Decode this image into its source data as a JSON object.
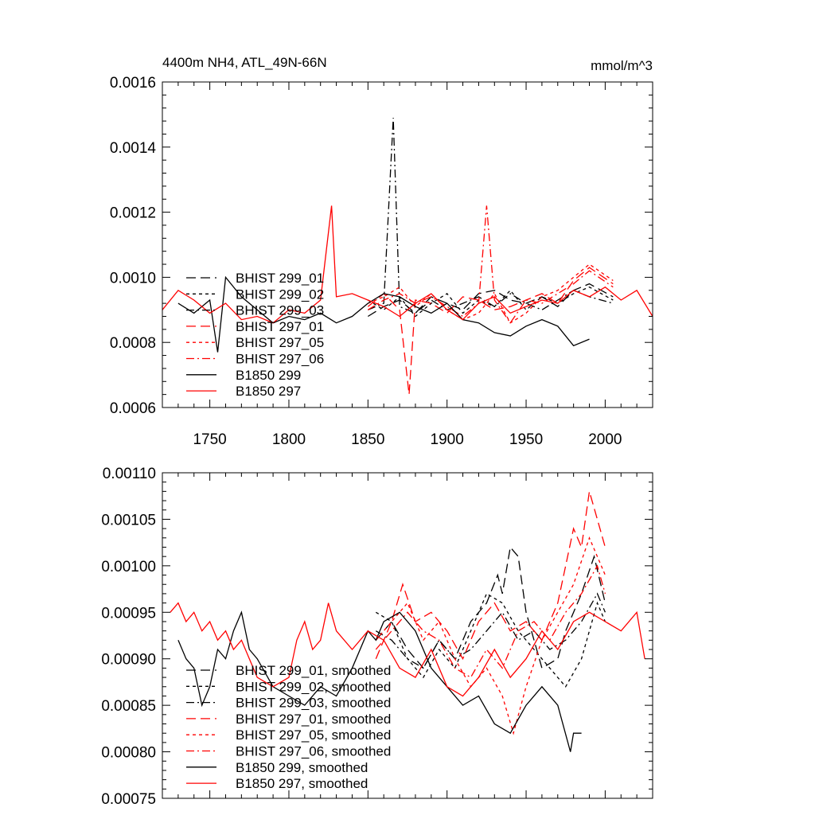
{
  "chart_data": [
    {
      "type": "line",
      "title": "4400m NH4, ATL_49N-66N",
      "units": "mmol/m^3",
      "xlim": [
        1720,
        2030
      ],
      "ylim": [
        0.0006,
        0.0016
      ],
      "x_ticks": [
        1750,
        1800,
        1850,
        1900,
        1950,
        2000
      ],
      "x_tick_labels": [
        "1750",
        "1800",
        "1850",
        "1900",
        "1950",
        "2000"
      ],
      "y_ticks": [
        0.0006,
        0.0008,
        0.001,
        0.0012,
        0.0014,
        0.0016
      ],
      "y_tick_labels": [
        "0.0006",
        "0.0008",
        "0.0010",
        "0.0012",
        "0.0014",
        "0.0016"
      ],
      "legend_position": "left-center",
      "series": [
        {
          "name": "BHIST 299_01",
          "color": "#000000",
          "dash": "long-dash",
          "x": [
            1850,
            1860,
            1870,
            1880,
            1890,
            1900,
            1910,
            1920,
            1930,
            1940,
            1950,
            1960,
            1970,
            1980,
            1990,
            2005
          ],
          "y": [
            0.00088,
            0.00091,
            0.00093,
            0.00089,
            0.00094,
            0.00092,
            0.0009,
            0.00095,
            0.00096,
            0.00093,
            0.00092,
            0.00094,
            0.00091,
            0.00096,
            0.00098,
            0.00094
          ]
        },
        {
          "name": "BHIST 299_02",
          "color": "#000000",
          "dash": "short-dash",
          "x": [
            1850,
            1860,
            1870,
            1880,
            1890,
            1900,
            1910,
            1920,
            1930,
            1940,
            1950,
            1960,
            1970,
            1980,
            1990,
            2005
          ],
          "y": [
            0.00093,
            0.0009,
            0.00094,
            0.00088,
            0.00092,
            0.00095,
            0.00089,
            0.00093,
            0.00091,
            0.00096,
            0.0009,
            0.00094,
            0.00092,
            0.00095,
            0.00097,
            0.00093
          ]
        },
        {
          "name": "BHIST 299_03",
          "color": "#000000",
          "dash": "dash-dot",
          "x": [
            1850,
            1860,
            1866,
            1870,
            1880,
            1890,
            1900,
            1910,
            1920,
            1930,
            1940,
            1950,
            1960,
            1970,
            1980,
            1990,
            2005
          ],
          "y": [
            0.0009,
            0.00092,
            0.00149,
            0.00091,
            0.00089,
            0.00093,
            0.0009,
            0.00092,
            0.00094,
            0.00091,
            0.00095,
            0.00092,
            0.0009,
            0.00093,
            0.00096,
            0.00094,
            0.00092
          ]
        },
        {
          "name": "BHIST 297_01",
          "color": "#ff0000",
          "dash": "long-dash",
          "x": [
            1850,
            1860,
            1870,
            1876,
            1880,
            1890,
            1900,
            1910,
            1920,
            1930,
            1940,
            1950,
            1960,
            1970,
            1980,
            1990,
            2005
          ],
          "y": [
            0.00091,
            0.00095,
            0.0009,
            0.00064,
            0.00093,
            0.00092,
            0.00089,
            0.00094,
            0.00093,
            0.0009,
            0.00091,
            0.00093,
            0.00095,
            0.00092,
            0.00099,
            0.00103,
            0.00098
          ]
        },
        {
          "name": "BHIST 297_05",
          "color": "#ff0000",
          "dash": "short-dash",
          "x": [
            1850,
            1860,
            1870,
            1880,
            1890,
            1900,
            1910,
            1920,
            1930,
            1940,
            1950,
            1960,
            1970,
            1980,
            1990,
            2005
          ],
          "y": [
            0.00092,
            0.00094,
            0.00097,
            0.00091,
            0.00095,
            0.0009,
            0.00087,
            0.00089,
            0.00095,
            0.00086,
            0.00089,
            0.00094,
            0.00096,
            0.001,
            0.00104,
            0.00099
          ]
        },
        {
          "name": "BHIST 297_06",
          "color": "#ff0000",
          "dash": "dash-dot",
          "x": [
            1850,
            1860,
            1870,
            1880,
            1890,
            1900,
            1910,
            1920,
            1925,
            1930,
            1940,
            1950,
            1960,
            1970,
            1980,
            1990,
            2005
          ],
          "y": [
            0.0009,
            0.00093,
            0.00095,
            0.00092,
            0.00094,
            0.00091,
            0.00088,
            0.00092,
            0.00122,
            0.00093,
            0.00086,
            0.00093,
            0.00092,
            0.00095,
            0.00098,
            0.00102,
            0.00097
          ]
        },
        {
          "name": "B1850 299",
          "color": "#000000",
          "dash": "solid",
          "x": [
            1730,
            1740,
            1750,
            1755,
            1760,
            1770,
            1780,
            1790,
            1800,
            1810,
            1820,
            1830,
            1840,
            1850,
            1860,
            1870,
            1880,
            1890,
            1900,
            1910,
            1920,
            1930,
            1940,
            1950,
            1960,
            1970,
            1980,
            1990
          ],
          "y": [
            0.00092,
            0.00089,
            0.00093,
            0.00077,
            0.001,
            0.00094,
            0.0009,
            0.00086,
            0.00088,
            0.00087,
            0.00089,
            0.00086,
            0.00088,
            0.00092,
            0.00095,
            0.00094,
            0.00091,
            0.00089,
            0.00092,
            0.00087,
            0.00086,
            0.00083,
            0.00082,
            0.00085,
            0.00087,
            0.00085,
            0.00079,
            0.00081
          ]
        },
        {
          "name": "B1850 297",
          "color": "#ff0000",
          "dash": "solid",
          "x": [
            1720,
            1730,
            1740,
            1750,
            1760,
            1770,
            1780,
            1790,
            1800,
            1810,
            1820,
            1827,
            1830,
            1840,
            1850,
            1860,
            1870,
            1880,
            1890,
            1900,
            1910,
            1920,
            1930,
            1940,
            1950,
            1960,
            1970,
            1980,
            1990,
            2000,
            2010,
            2020,
            2030
          ],
          "y": [
            0.0009,
            0.00096,
            0.00093,
            0.00089,
            0.00092,
            0.00087,
            0.00088,
            0.00086,
            0.0009,
            0.00089,
            0.00093,
            0.00122,
            0.00094,
            0.00095,
            0.00093,
            0.00091,
            0.00088,
            0.00092,
            0.00095,
            0.0009,
            0.00087,
            0.00092,
            0.00094,
            0.00089,
            0.00091,
            0.00093,
            0.00092,
            0.00096,
            0.00094,
            0.00097,
            0.00093,
            0.00096,
            0.00088
          ]
        }
      ]
    },
    {
      "type": "line",
      "xlim": [
        1720,
        2030
      ],
      "ylim": [
        0.00075,
        0.0011
      ],
      "x_ticks": [
        1750,
        1800,
        1850,
        1900,
        1950,
        2000
      ],
      "y_ticks": [
        0.00075,
        0.0008,
        0.00085,
        0.0009,
        0.00095,
        0.001,
        0.00105,
        0.0011
      ],
      "y_tick_labels": [
        "0.00075",
        "0.00080",
        "0.00085",
        "0.00090",
        "0.00095",
        "0.00100",
        "0.00105",
        "0.00110"
      ],
      "legend_position": "bottom-left",
      "series": [
        {
          "name": "BHIST 299_01, smoothed",
          "color": "#000000",
          "dash": "long-dash",
          "x": [
            1855,
            1865,
            1875,
            1885,
            1895,
            1905,
            1915,
            1925,
            1932,
            1935,
            1940,
            1945,
            1950,
            1955,
            1960,
            1970,
            1975,
            1985,
            1993,
            2000
          ],
          "y": [
            0.00092,
            0.00094,
            0.00091,
            0.00089,
            0.00092,
            0.0009,
            0.00094,
            0.00096,
            0.00099,
            0.00097,
            0.00102,
            0.00101,
            0.00095,
            0.00092,
            0.00089,
            0.0009,
            0.00093,
            0.00097,
            0.00101,
            0.00096
          ]
        },
        {
          "name": "BHIST 299_02, smoothed",
          "color": "#000000",
          "dash": "short-dash",
          "x": [
            1855,
            1865,
            1875,
            1885,
            1895,
            1905,
            1915,
            1925,
            1935,
            1945,
            1955,
            1965,
            1975,
            1985,
            1995,
            2000
          ],
          "y": [
            0.00095,
            0.00094,
            0.0009,
            0.00088,
            0.00091,
            0.00089,
            0.00093,
            0.00097,
            0.00096,
            0.00093,
            0.00091,
            0.00089,
            0.00087,
            0.0009,
            0.00096,
            0.00094
          ]
        },
        {
          "name": "BHIST 299_03, smoothed",
          "color": "#000000",
          "dash": "dash-dot",
          "x": [
            1855,
            1865,
            1875,
            1885,
            1895,
            1905,
            1915,
            1925,
            1935,
            1945,
            1955,
            1965,
            1975,
            1985,
            1995,
            2000
          ],
          "y": [
            0.00093,
            0.00092,
            0.0009,
            0.00089,
            0.00092,
            0.0009,
            0.00091,
            0.00093,
            0.00095,
            0.00092,
            0.00093,
            0.00091,
            0.00092,
            0.00094,
            0.00097,
            0.00095
          ]
        },
        {
          "name": "BHIST 297_01, smoothed",
          "color": "#ff0000",
          "dash": "long-dash",
          "x": [
            1855,
            1865,
            1872,
            1880,
            1890,
            1900,
            1910,
            1920,
            1930,
            1940,
            1950,
            1960,
            1970,
            1975,
            1980,
            1985,
            1990,
            1995,
            2000
          ],
          "y": [
            0.0009,
            0.00094,
            0.00098,
            0.00094,
            0.00095,
            0.00093,
            0.0009,
            0.00094,
            0.00096,
            0.00093,
            0.00094,
            0.00092,
            0.00096,
            0.001,
            0.00104,
            0.00102,
            0.00108,
            0.00105,
            0.00102
          ]
        },
        {
          "name": "BHIST 297_05, smoothed",
          "color": "#ff0000",
          "dash": "short-dash",
          "x": [
            1855,
            1865,
            1875,
            1885,
            1895,
            1905,
            1915,
            1925,
            1935,
            1942,
            1950,
            1960,
            1970,
            1980,
            1990,
            1995,
            2000
          ],
          "y": [
            0.00092,
            0.00094,
            0.00096,
            0.00092,
            0.00094,
            0.0009,
            0.00087,
            0.00089,
            0.00086,
            0.00082,
            0.00087,
            0.00092,
            0.00095,
            0.00098,
            0.00103,
            0.00101,
            0.00099
          ]
        },
        {
          "name": "BHIST 297_06, smoothed",
          "color": "#ff0000",
          "dash": "dash-dot",
          "x": [
            1855,
            1865,
            1875,
            1885,
            1895,
            1905,
            1915,
            1925,
            1935,
            1945,
            1955,
            1965,
            1975,
            1985,
            1995,
            2000
          ],
          "y": [
            0.00091,
            0.00093,
            0.00095,
            0.00093,
            0.00092,
            0.00089,
            0.00088,
            0.00091,
            0.00089,
            0.00093,
            0.00094,
            0.00092,
            0.00095,
            0.00097,
            0.001,
            0.00097
          ]
        },
        {
          "name": "B1850 299, smoothed",
          "color": "#000000",
          "dash": "solid",
          "x": [
            1730,
            1735,
            1740,
            1745,
            1750,
            1755,
            1760,
            1765,
            1770,
            1775,
            1780,
            1790,
            1800,
            1810,
            1820,
            1830,
            1840,
            1850,
            1855,
            1860,
            1870,
            1880,
            1890,
            1900,
            1910,
            1920,
            1930,
            1940,
            1950,
            1960,
            1970,
            1978,
            1980,
            1985
          ],
          "y": [
            0.00092,
            0.0009,
            0.00089,
            0.00085,
            0.00087,
            0.00091,
            0.0009,
            0.00093,
            0.00095,
            0.00091,
            0.0009,
            0.00087,
            0.00086,
            0.00085,
            0.00087,
            0.00086,
            0.00089,
            0.00093,
            0.00092,
            0.00094,
            0.00095,
            0.00093,
            0.00089,
            0.00087,
            0.00085,
            0.00086,
            0.00083,
            0.00082,
            0.00085,
            0.00087,
            0.00085,
            0.0008,
            0.00082,
            0.00082
          ]
        },
        {
          "name": "B1850 297, smoothed",
          "color": "#ff0000",
          "dash": "solid",
          "x": [
            1725,
            1730,
            1735,
            1740,
            1745,
            1750,
            1755,
            1760,
            1765,
            1770,
            1775,
            1780,
            1790,
            1800,
            1805,
            1810,
            1815,
            1820,
            1825,
            1830,
            1840,
            1850,
            1860,
            1870,
            1880,
            1890,
            1900,
            1910,
            1920,
            1930,
            1940,
            1950,
            1960,
            1970,
            1980,
            1990,
            2000,
            2010,
            2020,
            2025
          ],
          "y": [
            0.00095,
            0.00096,
            0.00094,
            0.00095,
            0.00093,
            0.00094,
            0.00092,
            0.00093,
            0.00091,
            0.00092,
            0.0009,
            0.00088,
            0.00087,
            0.00088,
            0.00092,
            0.00094,
            0.00091,
            0.00092,
            0.00096,
            0.00093,
            0.00091,
            0.00093,
            0.00092,
            0.00089,
            0.00088,
            0.00091,
            0.00087,
            0.00086,
            0.00088,
            0.00091,
            0.00088,
            0.0009,
            0.00093,
            0.00091,
            0.00094,
            0.00095,
            0.00094,
            0.00093,
            0.00095,
            0.0009
          ]
        }
      ]
    }
  ]
}
